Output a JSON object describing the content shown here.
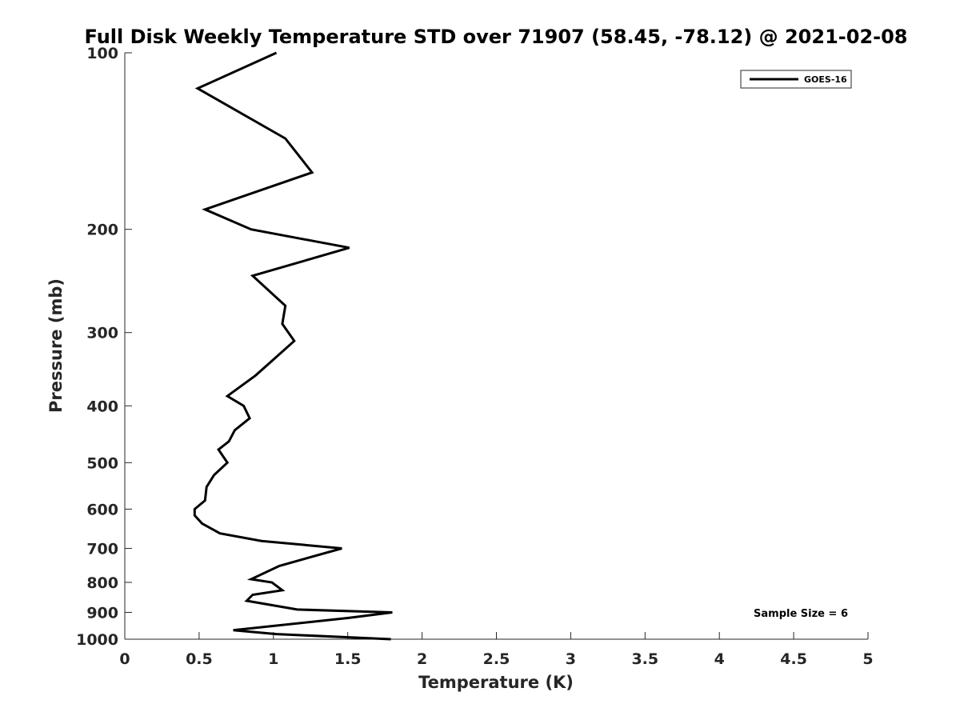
{
  "chart_data": {
    "type": "line",
    "title": "Full Disk Weekly Temperature STD over 71907 (58.45, -78.12) @ 2021-02-08",
    "xlabel": "Temperature (K)",
    "ylabel": "Pressure (mb)",
    "xlim": [
      0,
      5
    ],
    "ylim": [
      1000,
      100
    ],
    "y_scale": "log",
    "y_reversed": true,
    "xticks": [
      0,
      0.5,
      1,
      1.5,
      2,
      2.5,
      3,
      3.5,
      4,
      4.5,
      5
    ],
    "xtick_labels": [
      "0",
      "0.5",
      "1",
      "1.5",
      "2",
      "2.5",
      "3",
      "3.5",
      "4",
      "4.5",
      "5"
    ],
    "yticks": [
      100,
      200,
      300,
      400,
      500,
      600,
      700,
      800,
      900,
      1000
    ],
    "ytick_labels": [
      "100",
      "200",
      "300",
      "400",
      "500",
      "600",
      "700",
      "800",
      "900",
      "1000"
    ],
    "grid": false,
    "legend_position": "top-right",
    "annotation": "Sample Size = 6",
    "series": [
      {
        "name": "GOES-16",
        "color": "#000000",
        "points": [
          [
            1.02,
            100
          ],
          [
            0.49,
            115
          ],
          [
            1.08,
            140
          ],
          [
            1.26,
            160
          ],
          [
            0.54,
            185
          ],
          [
            0.85,
            200
          ],
          [
            1.51,
            215
          ],
          [
            0.86,
            240
          ],
          [
            1.08,
            270
          ],
          [
            1.06,
            290
          ],
          [
            1.14,
            310
          ],
          [
            1.02,
            330
          ],
          [
            0.88,
            355
          ],
          [
            0.69,
            385
          ],
          [
            0.8,
            400
          ],
          [
            0.84,
            420
          ],
          [
            0.74,
            440
          ],
          [
            0.7,
            460
          ],
          [
            0.63,
            475
          ],
          [
            0.69,
            500
          ],
          [
            0.6,
            525
          ],
          [
            0.55,
            550
          ],
          [
            0.54,
            580
          ],
          [
            0.47,
            600
          ],
          [
            0.47,
            615
          ],
          [
            0.52,
            635
          ],
          [
            0.64,
            660
          ],
          [
            0.92,
            680
          ],
          [
            1.46,
            700
          ],
          [
            1.04,
            750
          ],
          [
            0.85,
            790
          ],
          [
            0.99,
            800
          ],
          [
            1.06,
            825
          ],
          [
            0.86,
            840
          ],
          [
            0.82,
            860
          ],
          [
            1.16,
            890
          ],
          [
            1.8,
            900
          ],
          [
            1.5,
            920
          ],
          [
            0.73,
            965
          ],
          [
            1.02,
            980
          ],
          [
            1.79,
            1000
          ]
        ]
      }
    ]
  }
}
